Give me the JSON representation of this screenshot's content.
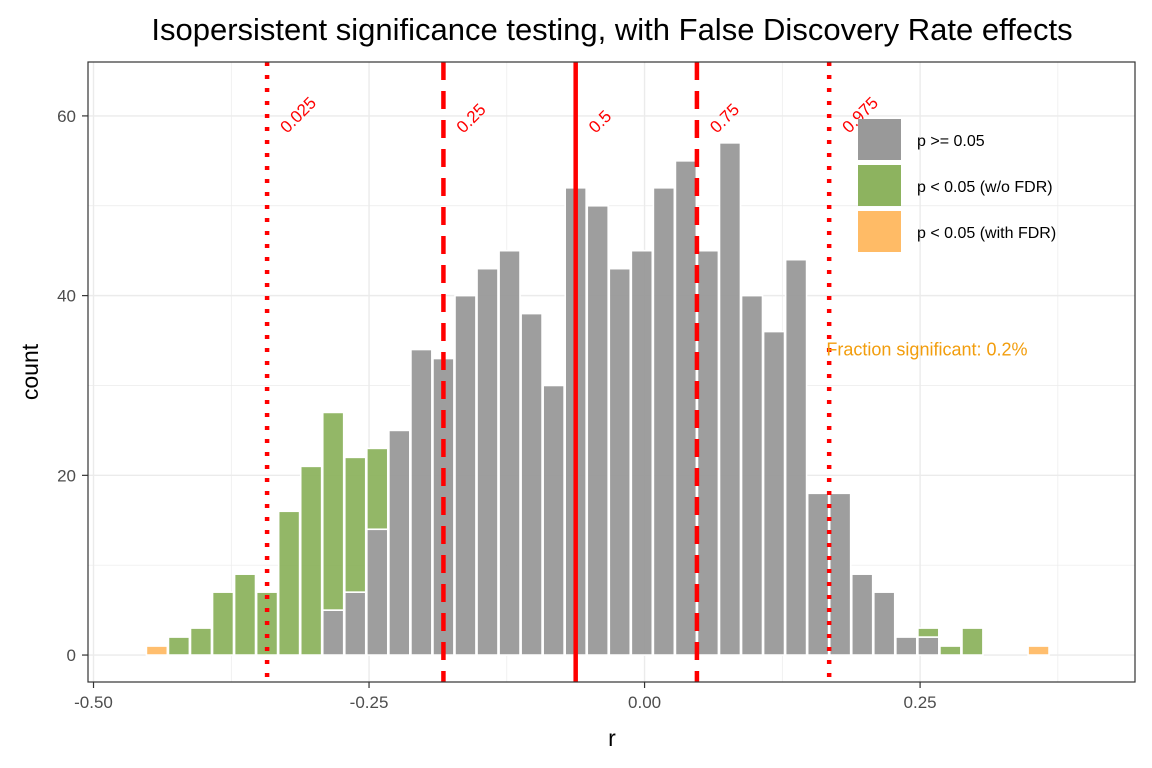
{
  "chart_data": {
    "type": "bar",
    "title": "Isopersistent significance testing, with False Discovery Rate effects",
    "xlabel": "r",
    "ylabel": "count",
    "xlim": [
      -0.505,
      0.445
    ],
    "ylim": [
      -3,
      66
    ],
    "x_ticks": [
      {
        "value": -0.5,
        "label": "-0.50"
      },
      {
        "value": -0.25,
        "label": "-0.25"
      },
      {
        "value": 0.0,
        "label": "0.00"
      },
      {
        "value": 0.25,
        "label": "0.25"
      }
    ],
    "y_ticks": [
      {
        "value": 0,
        "label": "0"
      },
      {
        "value": 20,
        "label": "20"
      },
      {
        "value": 40,
        "label": "40"
      },
      {
        "value": 60,
        "label": "60"
      }
    ],
    "bin_width": 0.019,
    "stacked": true,
    "grid": true,
    "legend_position": "top-right",
    "colors": {
      "nonsig": "#999999",
      "sig_no_fdr": "#8db35f",
      "sig_fdr": "#ffbb66",
      "quantile": "#ff0000",
      "annotation": "#f29d0c"
    },
    "series": [
      {
        "name": "p >= 0.05",
        "color": "#999999",
        "points": [
          {
            "x": -0.2825,
            "y": 5
          },
          {
            "x": -0.2625,
            "y": 7
          },
          {
            "x": -0.2425,
            "y": 14
          },
          {
            "x": -0.2225,
            "y": 25
          },
          {
            "x": -0.2025,
            "y": 34
          },
          {
            "x": -0.1825,
            "y": 33
          },
          {
            "x": -0.1625,
            "y": 40
          },
          {
            "x": -0.1425,
            "y": 43
          },
          {
            "x": -0.1225,
            "y": 45
          },
          {
            "x": -0.1025,
            "y": 38
          },
          {
            "x": -0.0825,
            "y": 30
          },
          {
            "x": -0.0625,
            "y": 52
          },
          {
            "x": -0.0425,
            "y": 50
          },
          {
            "x": -0.0225,
            "y": 43
          },
          {
            "x": -0.0025,
            "y": 45
          },
          {
            "x": 0.0175,
            "y": 52
          },
          {
            "x": 0.0375,
            "y": 55
          },
          {
            "x": 0.0575,
            "y": 45
          },
          {
            "x": 0.0775,
            "y": 57
          },
          {
            "x": 0.0975,
            "y": 40
          },
          {
            "x": 0.1175,
            "y": 36
          },
          {
            "x": 0.1375,
            "y": 44
          },
          {
            "x": 0.1575,
            "y": 18
          },
          {
            "x": 0.1775,
            "y": 18
          },
          {
            "x": 0.1975,
            "y": 9
          },
          {
            "x": 0.2175,
            "y": 7
          },
          {
            "x": 0.2375,
            "y": 2
          },
          {
            "x": 0.2575,
            "y": 2
          }
        ]
      },
      {
        "name": "p < 0.05 (w/o FDR)",
        "color": "#8db35f",
        "points": [
          {
            "x": -0.4225,
            "y": 2
          },
          {
            "x": -0.4025,
            "y": 3
          },
          {
            "x": -0.3825,
            "y": 7
          },
          {
            "x": -0.3625,
            "y": 9
          },
          {
            "x": -0.3425,
            "y": 7
          },
          {
            "x": -0.3225,
            "y": 16
          },
          {
            "x": -0.3025,
            "y": 21
          },
          {
            "x": -0.2825,
            "y": 22
          },
          {
            "x": -0.2625,
            "y": 15
          },
          {
            "x": -0.2425,
            "y": 9
          },
          {
            "x": 0.2575,
            "y": 1
          },
          {
            "x": 0.2775,
            "y": 1
          },
          {
            "x": 0.2975,
            "y": 3
          }
        ]
      },
      {
        "name": "p < 0.05 (with FDR)",
        "color": "#ffbb66",
        "points": [
          {
            "x": -0.4425,
            "y": 1
          },
          {
            "x": 0.3575,
            "y": 1
          }
        ]
      }
    ],
    "quantiles": [
      {
        "value": -0.3425,
        "label": "0.025",
        "line": "dotted"
      },
      {
        "value": -0.1825,
        "label": "0.25",
        "line": "dashed"
      },
      {
        "value": -0.0625,
        "label": "0.5",
        "line": "solid"
      },
      {
        "value": 0.0475,
        "label": "0.75",
        "line": "dashed"
      },
      {
        "value": 0.1675,
        "label": "0.975",
        "line": "dotted"
      }
    ],
    "annotation": {
      "text": "Fraction significant: 0.2%",
      "x": 0.165,
      "y": 34
    }
  }
}
